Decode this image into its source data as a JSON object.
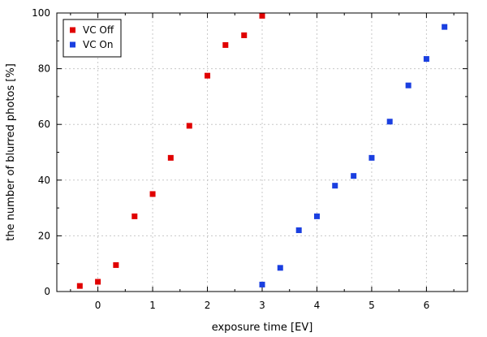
{
  "chart_data": {
    "type": "scatter",
    "title": "",
    "xlabel": "exposure time [EV]",
    "ylabel": "the number of blurred photos [%]",
    "xlim": [
      -0.75,
      6.75
    ],
    "ylim": [
      0,
      100
    ],
    "x_ticks": [
      0,
      1,
      2,
      3,
      4,
      5,
      6
    ],
    "y_ticks": [
      0,
      20,
      40,
      60,
      80,
      100
    ],
    "x_minor_ticks": [
      -0.5,
      0.5,
      1.5,
      2.5,
      3.5,
      4.5,
      5.5,
      6.5
    ],
    "y_minor_ticks": [
      10,
      30,
      50,
      70,
      90
    ],
    "grid": true,
    "legend_position": "top-left",
    "series": [
      {
        "name": "VC Off",
        "color": "#e00000",
        "points": [
          {
            "x": -0.33,
            "y": 2
          },
          {
            "x": 0,
            "y": 3.5
          },
          {
            "x": 0.33,
            "y": 9.5
          },
          {
            "x": 0.67,
            "y": 27
          },
          {
            "x": 1,
            "y": 35
          },
          {
            "x": 1.33,
            "y": 48
          },
          {
            "x": 1.67,
            "y": 59.5
          },
          {
            "x": 2,
            "y": 77.5
          },
          {
            "x": 2.33,
            "y": 88.5
          },
          {
            "x": 2.67,
            "y": 92
          },
          {
            "x": 3,
            "y": 99
          }
        ]
      },
      {
        "name": "VC On",
        "color": "#1a3fe0",
        "points": [
          {
            "x": 3,
            "y": 2.5
          },
          {
            "x": 3.33,
            "y": 8.5
          },
          {
            "x": 3.67,
            "y": 22
          },
          {
            "x": 4,
            "y": 27
          },
          {
            "x": 4.33,
            "y": 38
          },
          {
            "x": 4.67,
            "y": 41.5
          },
          {
            "x": 5,
            "y": 48
          },
          {
            "x": 5.33,
            "y": 61
          },
          {
            "x": 5.67,
            "y": 74
          },
          {
            "x": 6,
            "y": 83.5
          },
          {
            "x": 6.33,
            "y": 95
          }
        ]
      }
    ]
  }
}
